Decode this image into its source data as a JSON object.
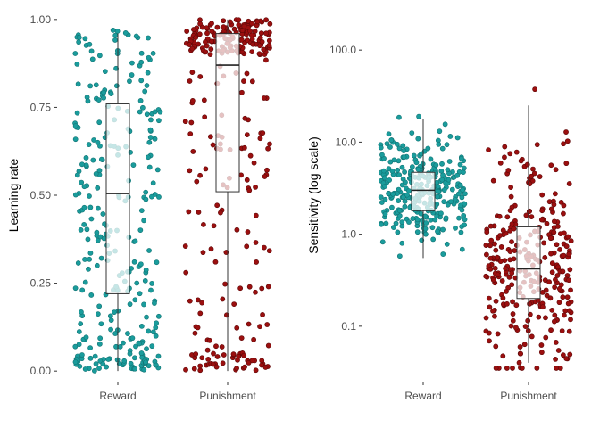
{
  "chart_data": [
    {
      "type": "boxplot-jitter",
      "ylabel": "Learning rate",
      "yscale": "linear",
      "ylim": [
        -0.03,
        1.03
      ],
      "yticks": [
        0.0,
        0.25,
        0.5,
        0.75,
        1.0
      ],
      "ytick_labels": [
        "0.00",
        "0.25",
        "0.50",
        "0.75",
        "1.00"
      ],
      "categories": [
        "Reward",
        "Punishment"
      ],
      "colors": {
        "Reward": "#1a9c9c",
        "Punishment": "#9b0f0f"
      },
      "boxes": [
        {
          "name": "Reward",
          "min": 0.0,
          "q1": 0.22,
          "median": 0.505,
          "q3": 0.76,
          "max": 0.96
        },
        {
          "name": "Punishment",
          "min": 0.0,
          "q1": 0.51,
          "median": 0.87,
          "q3": 0.96,
          "max": 1.0
        }
      ],
      "points": {
        "n": 300,
        "distribution": {
          "Reward": "uniform 0-1",
          "Punishment": "skewed toward 1"
        }
      }
    },
    {
      "type": "boxplot-jitter",
      "ylabel": "Sensitivity (log scale)",
      "yscale": "log10",
      "ylim": [
        0.025,
        280
      ],
      "yticks": [
        0.1,
        1.0,
        10.0,
        100.0
      ],
      "ytick_labels": [
        "0.1",
        "1.0",
        "10.0",
        "100.0"
      ],
      "categories": [
        "Reward",
        "Punishment"
      ],
      "colors": {
        "Reward": "#1a9c9c",
        "Punishment": "#9b0f0f"
      },
      "boxes": [
        {
          "name": "Reward",
          "min": 0.55,
          "q1": 1.8,
          "median": 3.0,
          "q3": 4.7,
          "max": 18.0
        },
        {
          "name": "Punishment",
          "min": 0.04,
          "q1": 0.2,
          "median": 0.42,
          "q3": 1.2,
          "max": 25.0
        }
      ],
      "points": {
        "n": 300,
        "distribution": {
          "Reward": "log-normal around 3",
          "Punishment": "log-normal around 0.4"
        }
      }
    }
  ]
}
